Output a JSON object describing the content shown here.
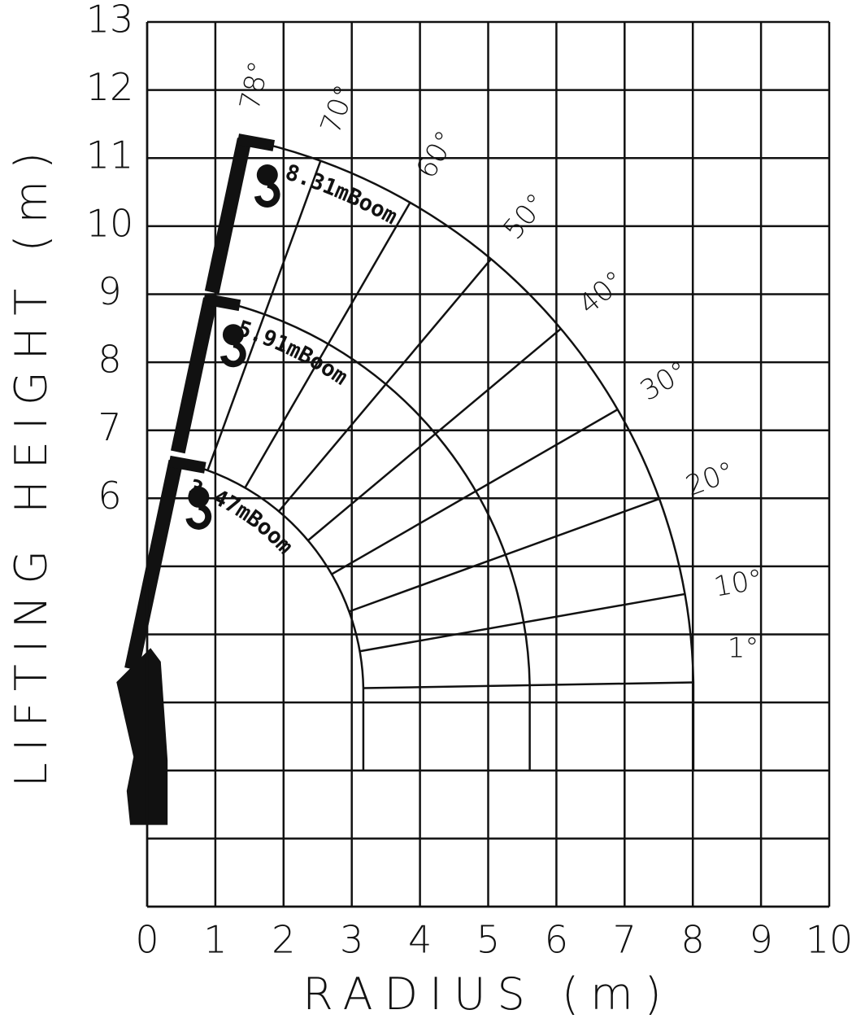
{
  "chart_data": {
    "type": "range",
    "xlabel": "RADIUS (m)",
    "ylabel": "LIFTING HEIGHT (m)",
    "xlim": [
      0,
      10
    ],
    "ylim": [
      0,
      13
    ],
    "xticks": [
      0,
      1,
      2,
      3,
      4,
      5,
      6,
      7,
      8,
      9,
      10
    ],
    "yticks": [
      6,
      7,
      8,
      9,
      10,
      11,
      12,
      13
    ],
    "ygrid": [
      0,
      1,
      2,
      3,
      4,
      5
    ],
    "grid": true,
    "color": "#111111",
    "booms": [
      {
        "name": "3.47mBoom",
        "length": 3.47
      },
      {
        "name": "5.91mBoom",
        "length": 5.91
      },
      {
        "name": "8.31mBoom",
        "length": 8.31
      }
    ],
    "angles": [
      1,
      10,
      20,
      30,
      40,
      50,
      60,
      70,
      78
    ],
    "angle_labels": [
      "1°",
      "10°",
      "20°",
      "30°",
      "40°",
      "50°",
      "60°",
      "70°",
      "78°"
    ]
  }
}
